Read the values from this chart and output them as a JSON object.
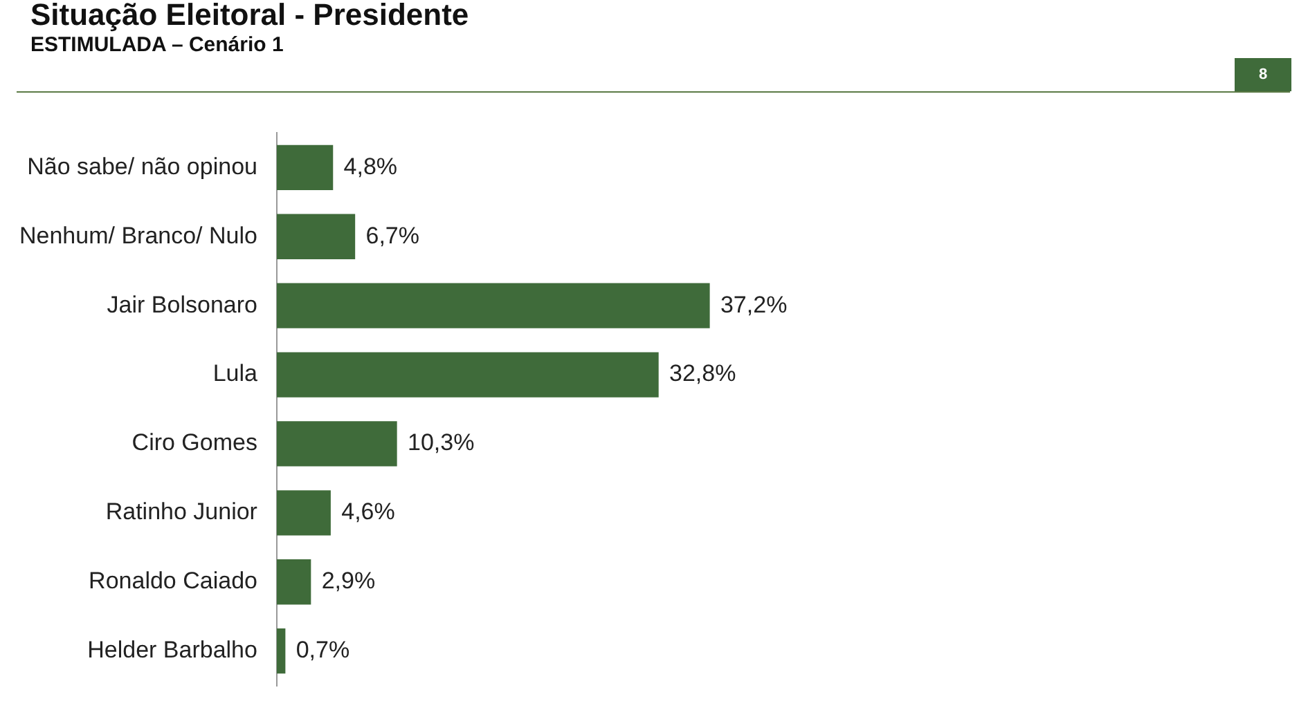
{
  "chart_data": {
    "type": "bar",
    "orientation": "horizontal",
    "title": "Situação Eleitoral - Presidente",
    "subtitle": "ESTIMULADA – Cenário 1",
    "annotations": [
      "8"
    ],
    "categories": [
      "Não sabe/ não opinou",
      "Nenhum/ Branco/ Nulo",
      "Jair Bolsonaro",
      "Lula",
      "Ciro Gomes",
      "Ratinho Junior",
      "Ronaldo Caiado",
      "Helder Barbalho"
    ],
    "values": [
      4.8,
      6.7,
      37.2,
      32.8,
      10.3,
      4.6,
      2.9,
      0.7
    ],
    "value_labels": [
      "4,8%",
      "6,7%",
      "37,2%",
      "32,8%",
      "10,3%",
      "4,6%",
      "2,9%",
      "0,7%"
    ],
    "color": "#3f6b3a",
    "grid": false,
    "legend": false
  }
}
